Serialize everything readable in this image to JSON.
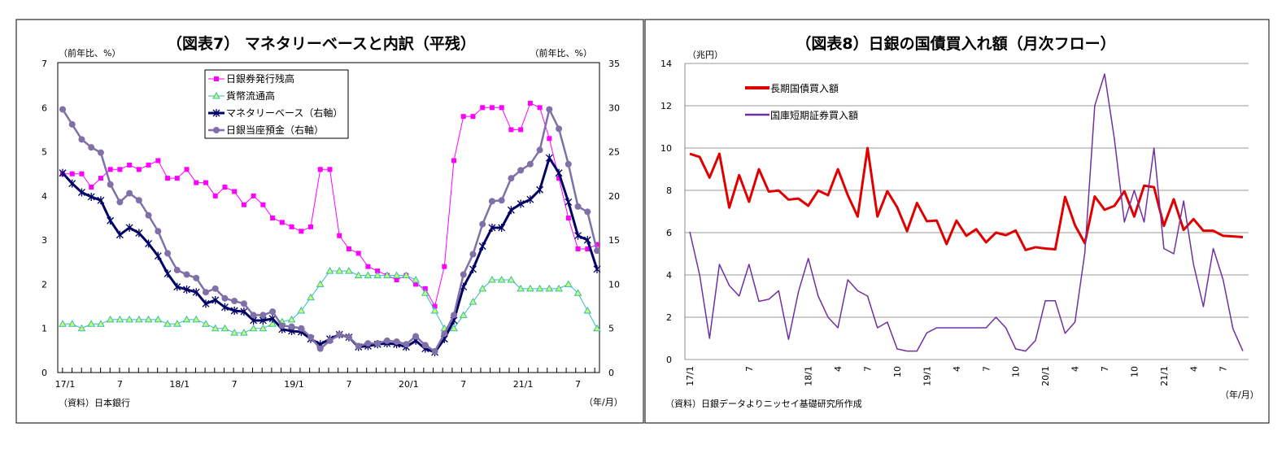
{
  "charts": [
    {
      "type": "line",
      "title": "（図表7） マネタリーベースと内訳（平残）",
      "ylabel_left": "（前年比、%）",
      "ylabel_right": "（前年比、%）",
      "source": "（資料）日本銀行",
      "x_unit": "（年/月）",
      "x_range": [
        "17/1",
        "21/9"
      ],
      "x_frequency": "monthly",
      "ylim_left": [
        0,
        7
      ],
      "ylim_right": [
        0,
        35
      ],
      "y_ticks_left": [
        "0",
        "1",
        "2",
        "3",
        "4",
        "5",
        "6",
        "7"
      ],
      "y_ticks_right": [
        "0",
        "5",
        "10",
        "15",
        "20",
        "25",
        "30",
        "35"
      ],
      "x_ticks": [
        {
          "month": "17/1",
          "label": "17/1"
        },
        {
          "month": "17/7",
          "label": "7"
        },
        {
          "month": "18/1",
          "label": "18/1"
        },
        {
          "month": "18/7",
          "label": "7"
        },
        {
          "month": "19/1",
          "label": "19/1"
        },
        {
          "month": "19/7",
          "label": "7"
        },
        {
          "month": "20/1",
          "label": "20/1"
        },
        {
          "month": "20/7",
          "label": "7"
        },
        {
          "month": "21/1",
          "label": "21/1"
        },
        {
          "month": "21/7",
          "label": "7"
        }
      ],
      "grid": false,
      "legend_position": "top-left-inside",
      "series": [
        {
          "name": "日銀券発行残高",
          "axis": "left",
          "color": "#ff00ff",
          "marker": "square",
          "values": [
            4.5,
            4.5,
            4.5,
            4.2,
            4.4,
            4.6,
            4.6,
            4.7,
            4.6,
            4.7,
            4.8,
            4.4,
            4.4,
            4.6,
            4.3,
            4.3,
            4.0,
            4.2,
            4.1,
            3.8,
            4.0,
            3.8,
            3.5,
            3.4,
            3.3,
            3.2,
            3.3,
            4.6,
            4.6,
            3.1,
            2.8,
            2.7,
            2.4,
            2.3,
            2.2,
            2.1,
            2.2,
            2.0,
            1.9,
            1.5,
            2.4,
            4.8,
            5.8,
            5.8,
            6.0,
            6.0,
            6.0,
            5.5,
            5.5,
            6.1,
            6.0,
            5.3,
            4.4,
            3.5,
            2.8,
            2.8,
            2.9
          ]
        },
        {
          "name": "貨幣流通高",
          "axis": "left",
          "color": "#33bbbb",
          "marker": "triangle",
          "values": [
            1.1,
            1.1,
            1.0,
            1.1,
            1.1,
            1.2,
            1.2,
            1.2,
            1.2,
            1.2,
            1.2,
            1.1,
            1.1,
            1.2,
            1.2,
            1.1,
            1.0,
            1.0,
            0.9,
            0.9,
            1.0,
            1.0,
            1.1,
            1.15,
            1.2,
            1.4,
            1.7,
            2.0,
            2.3,
            2.3,
            2.3,
            2.2,
            2.2,
            2.2,
            2.2,
            2.2,
            2.2,
            2.1,
            1.8,
            1.4,
            1.0,
            1.0,
            1.3,
            1.6,
            1.9,
            2.1,
            2.1,
            2.1,
            1.9,
            1.9,
            1.9,
            1.9,
            1.9,
            2.0,
            1.8,
            1.4,
            1.0
          ]
        },
        {
          "name": "マネタリーベース（右軸）",
          "axis": "right",
          "color": "#000066",
          "marker": "asterisk",
          "values": [
            22.6,
            21.4,
            20.4,
            19.9,
            19.5,
            17.2,
            15.6,
            16.4,
            15.8,
            14.6,
            13.2,
            11.2,
            9.7,
            9.4,
            9.1,
            7.8,
            8.2,
            7.4,
            7.0,
            6.9,
            5.9,
            5.9,
            6.1,
            4.9,
            4.7,
            4.6,
            3.8,
            3.2,
            3.8,
            4.3,
            4.0,
            2.9,
            3.0,
            3.2,
            3.3,
            3.2,
            2.9,
            3.6,
            2.7,
            2.3,
            3.8,
            5.9,
            9.7,
            11.7,
            14.3,
            16.4,
            16.4,
            18.4,
            19.1,
            19.6,
            20.7,
            24.3,
            22.6,
            19.3,
            15.5,
            15.0,
            11.7
          ]
        },
        {
          "name": "日銀当座預金（右軸）",
          "axis": "right",
          "color": "#8070a8",
          "marker": "circle",
          "values": [
            29.8,
            28.1,
            26.4,
            25.5,
            24.9,
            21.3,
            19.3,
            20.3,
            19.5,
            17.8,
            16.0,
            13.5,
            11.6,
            11.1,
            10.7,
            9.1,
            9.5,
            8.4,
            8.1,
            7.8,
            6.5,
            6.5,
            6.9,
            5.3,
            5.2,
            5.0,
            4.0,
            2.7,
            3.6,
            4.3,
            4.0,
            3.0,
            3.3,
            3.3,
            3.6,
            3.5,
            3.2,
            4.1,
            3.1,
            2.4,
            4.4,
            6.5,
            11.1,
            13.4,
            16.8,
            19.4,
            19.5,
            22.0,
            22.9,
            23.6,
            25.2,
            29.8,
            27.6,
            23.6,
            18.8,
            18.2,
            13.8
          ]
        }
      ]
    },
    {
      "type": "line",
      "title": "（図表8）日銀の国債買入れ額（月次フロー）",
      "ylabel_left": "（兆円）",
      "source": "（資料）日銀データよりニッセイ基礎研究所作成",
      "x_unit": "（年/月）",
      "x_range": [
        "17/1",
        "21/9"
      ],
      "x_frequency": "monthly",
      "ylim_left": [
        0,
        14
      ],
      "y_ticks_left": [
        "0",
        "2",
        "4",
        "6",
        "8",
        "10",
        "12",
        "14"
      ],
      "x_ticks": [
        {
          "month": "17/1",
          "label": "17/1"
        },
        {
          "month": "17/7",
          "label": "7"
        },
        {
          "month": "18/1",
          "label": "18/1"
        },
        {
          "month": "18/4",
          "label": "4"
        },
        {
          "month": "18/7",
          "label": "7"
        },
        {
          "month": "18/10",
          "label": "10"
        },
        {
          "month": "19/1",
          "label": "19/1"
        },
        {
          "month": "19/4",
          "label": "4"
        },
        {
          "month": "19/7",
          "label": "7"
        },
        {
          "month": "19/10",
          "label": "10"
        },
        {
          "month": "20/1",
          "label": "20/1"
        },
        {
          "month": "20/4",
          "label": "4"
        },
        {
          "month": "20/7",
          "label": "7"
        },
        {
          "month": "20/10",
          "label": "10"
        },
        {
          "month": "21/1",
          "label": "21/1"
        },
        {
          "month": "21/4",
          "label": "4"
        },
        {
          "month": "21/7",
          "label": "7"
        }
      ],
      "grid": true,
      "legend_position": "top-left-inside",
      "series": [
        {
          "name": "長期国債買入額",
          "axis": "left",
          "color": "#e00000",
          "width": 3,
          "values": [
            9.73,
            9.58,
            8.6,
            9.73,
            7.18,
            8.72,
            7.46,
            9.0,
            7.94,
            7.99,
            7.56,
            7.61,
            7.27,
            7.99,
            7.77,
            9.0,
            7.77,
            6.76,
            10.0,
            6.76,
            7.96,
            7.2,
            6.07,
            7.4,
            6.54,
            6.57,
            5.46,
            6.57,
            5.85,
            6.16,
            5.54,
            6.0,
            5.88,
            6.1,
            5.18,
            5.31,
            5.25,
            5.21,
            7.69,
            6.35,
            5.5,
            7.71,
            7.08,
            7.27,
            7.96,
            6.76,
            8.22,
            8.15,
            6.32,
            7.58,
            6.13,
            6.64,
            6.09,
            6.09,
            5.85,
            5.82,
            5.79
          ]
        },
        {
          "name": "国庫短期証券買入額",
          "axis": "left",
          "color": "#7030a0",
          "width": 1.5,
          "values": [
            6.04,
            4.0,
            1.0,
            4.5,
            3.5,
            3.0,
            4.5,
            2.75,
            2.85,
            3.25,
            0.95,
            3.2,
            4.78,
            3.0,
            2.0,
            1.5,
            3.77,
            3.25,
            3.0,
            1.5,
            1.77,
            0.5,
            0.4,
            0.4,
            1.26,
            1.5,
            1.5,
            1.5,
            1.5,
            1.5,
            1.5,
            2.0,
            1.5,
            0.5,
            0.4,
            0.9,
            2.78,
            2.78,
            1.24,
            1.77,
            5.06,
            12.0,
            13.5,
            10.4,
            6.5,
            8.0,
            6.5,
            10.0,
            5.25,
            5.0,
            7.5,
            4.5,
            2.5,
            5.25,
            3.77,
            1.45,
            0.4
          ]
        }
      ]
    }
  ]
}
